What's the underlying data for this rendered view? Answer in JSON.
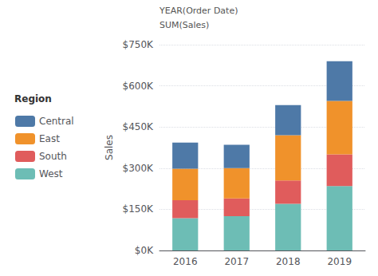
{
  "chart_data": {
    "type": "bar",
    "stacked": true,
    "categories": [
      "2016",
      "2017",
      "2018",
      "2019"
    ],
    "series": [
      {
        "name": "West",
        "color": "#6dbdb5",
        "values": [
          118000,
          125000,
          170000,
          235000
        ]
      },
      {
        "name": "South",
        "color": "#e05c5c",
        "values": [
          65000,
          65000,
          85000,
          115000
        ]
      },
      {
        "name": "East",
        "color": "#f0922b",
        "values": [
          115000,
          110000,
          165000,
          195000
        ]
      },
      {
        "name": "Central",
        "color": "#4e79a7",
        "values": [
          95000,
          85000,
          110000,
          145000
        ]
      }
    ],
    "ylabel": "Sales",
    "ylim": [
      0,
      750000
    ],
    "yticks": [
      {
        "value": 0,
        "label": "$0K"
      },
      {
        "value": 150000,
        "label": "$150K"
      },
      {
        "value": 300000,
        "label": "$300K"
      },
      {
        "value": 450000,
        "label": "$450K"
      },
      {
        "value": 600000,
        "label": "$600K"
      },
      {
        "value": 750000,
        "label": "$750K"
      }
    ],
    "grid": true,
    "legend": "left",
    "annotations": [
      "YEAR(Order Date)",
      "SUM(Sales)",
      "Region"
    ]
  }
}
